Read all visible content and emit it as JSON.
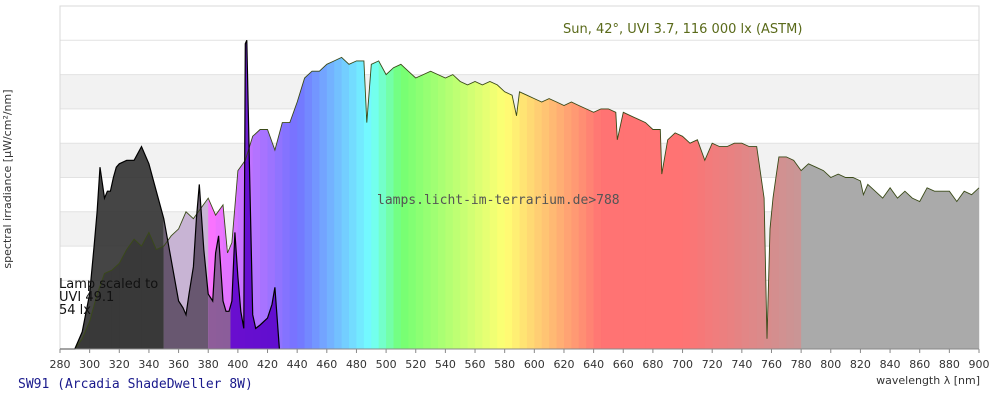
{
  "chart_data": {
    "type": "area",
    "title": "Sun, 42°, UVI 3.7, 116 000 lx (ASTM)",
    "xlabel": "wavelength λ [nm]",
    "ylabel": "spectral irradiance [µW/cm²/nm]",
    "xlim": [
      280,
      900
    ],
    "ylim": [
      0,
      10
    ],
    "x_ticks": [
      280,
      300,
      320,
      340,
      360,
      380,
      400,
      420,
      440,
      460,
      480,
      500,
      520,
      540,
      560,
      580,
      600,
      620,
      640,
      660,
      680,
      700,
      720,
      740,
      760,
      780,
      800,
      820,
      840,
      860,
      880,
      900
    ],
    "y_gridlines": [
      2,
      3,
      4,
      5,
      6,
      7,
      8,
      9
    ],
    "grid": true,
    "watermark": "lamps.licht-im-terrarium.de>788",
    "lamp_note": [
      "Lamp scaled to",
      "UVI 49.1",
      "54 lx"
    ],
    "lamp_name": "SW91 (Arcadia ShadeDweller 8W)",
    "series": [
      {
        "name": "Sun, 42°, UVI 3.7, 116 000 lx (ASTM)",
        "role": "sun",
        "x": [
          290,
          295,
          300,
          305,
          310,
          315,
          320,
          325,
          330,
          335,
          340,
          345,
          350,
          355,
          360,
          365,
          370,
          375,
          380,
          385,
          390,
          393,
          396,
          400,
          405,
          410,
          415,
          420,
          425,
          430,
          435,
          440,
          445,
          450,
          455,
          460,
          465,
          470,
          475,
          480,
          485,
          487,
          490,
          495,
          500,
          505,
          510,
          515,
          520,
          525,
          530,
          535,
          540,
          545,
          550,
          555,
          560,
          565,
          570,
          575,
          580,
          585,
          588,
          590,
          595,
          600,
          605,
          610,
          615,
          620,
          625,
          630,
          635,
          640,
          645,
          650,
          655,
          656,
          660,
          665,
          670,
          675,
          680,
          685,
          686,
          690,
          695,
          700,
          705,
          710,
          715,
          720,
          725,
          730,
          735,
          740,
          745,
          750,
          755,
          757,
          759,
          761,
          763,
          765,
          770,
          775,
          780,
          785,
          790,
          795,
          800,
          805,
          810,
          815,
          820,
          822,
          825,
          830,
          835,
          840,
          845,
          850,
          855,
          860,
          865,
          870,
          875,
          880,
          885,
          890,
          895,
          900
        ],
        "y": [
          0.0,
          0.3,
          0.8,
          1.6,
          2.2,
          2.3,
          2.5,
          2.9,
          3.2,
          3.0,
          3.4,
          2.9,
          3.0,
          3.3,
          3.5,
          4.0,
          3.8,
          4.1,
          4.4,
          3.9,
          4.2,
          2.8,
          3.1,
          5.2,
          5.5,
          6.2,
          6.4,
          6.4,
          5.8,
          6.6,
          6.6,
          7.2,
          7.9,
          8.1,
          8.1,
          8.3,
          8.4,
          8.5,
          8.3,
          8.4,
          8.4,
          6.6,
          8.3,
          8.4,
          8.0,
          8.2,
          8.3,
          8.1,
          7.9,
          8.0,
          8.1,
          8.0,
          7.9,
          8.0,
          7.8,
          7.7,
          7.8,
          7.7,
          7.8,
          7.7,
          7.5,
          7.4,
          6.8,
          7.5,
          7.4,
          7.3,
          7.2,
          7.3,
          7.2,
          7.1,
          7.2,
          7.1,
          7.0,
          6.9,
          7.0,
          7.0,
          6.9,
          6.1,
          6.9,
          6.8,
          6.7,
          6.6,
          6.4,
          6.4,
          5.1,
          6.1,
          6.3,
          6.2,
          6.0,
          6.1,
          5.5,
          6.0,
          5.9,
          5.9,
          6.0,
          6.0,
          5.9,
          5.9,
          4.4,
          0.3,
          3.5,
          4.4,
          5.0,
          5.6,
          5.6,
          5.5,
          5.2,
          5.4,
          5.3,
          5.2,
          5.0,
          5.1,
          5.0,
          5.0,
          4.9,
          4.5,
          4.8,
          4.6,
          4.4,
          4.7,
          4.4,
          4.6,
          4.4,
          4.3,
          4.7,
          4.6,
          4.6,
          4.6,
          4.3,
          4.6,
          4.5,
          4.7
        ]
      },
      {
        "name": "SW91 (Arcadia ShadeDweller 8W)",
        "role": "lamp",
        "x": [
          280,
          290,
          295,
          300,
          303,
          305,
          307,
          310,
          312,
          314,
          316,
          318,
          320,
          325,
          330,
          335,
          340,
          345,
          350,
          355,
          360,
          363,
          365,
          367,
          370,
          372,
          374,
          377,
          380,
          383,
          385,
          387,
          390,
          392,
          394,
          396,
          398,
          400,
          402,
          404,
          405,
          406,
          408,
          410,
          412,
          415,
          420,
          423,
          425,
          428
        ],
        "y": [
          0,
          0,
          0.5,
          1.6,
          3.0,
          4.0,
          5.3,
          4.4,
          4.6,
          4.6,
          5.0,
          5.3,
          5.4,
          5.5,
          5.5,
          5.9,
          5.4,
          4.6,
          3.8,
          2.6,
          1.4,
          1.2,
          1.0,
          1.6,
          2.4,
          3.8,
          4.8,
          2.9,
          1.6,
          1.4,
          2.8,
          3.3,
          1.4,
          1.1,
          1.1,
          1.4,
          3.4,
          2.1,
          1.1,
          0.6,
          8.9,
          9.0,
          5.0,
          1.0,
          0.6,
          0.7,
          0.9,
          1.3,
          1.8,
          0.0
        ]
      }
    ]
  }
}
